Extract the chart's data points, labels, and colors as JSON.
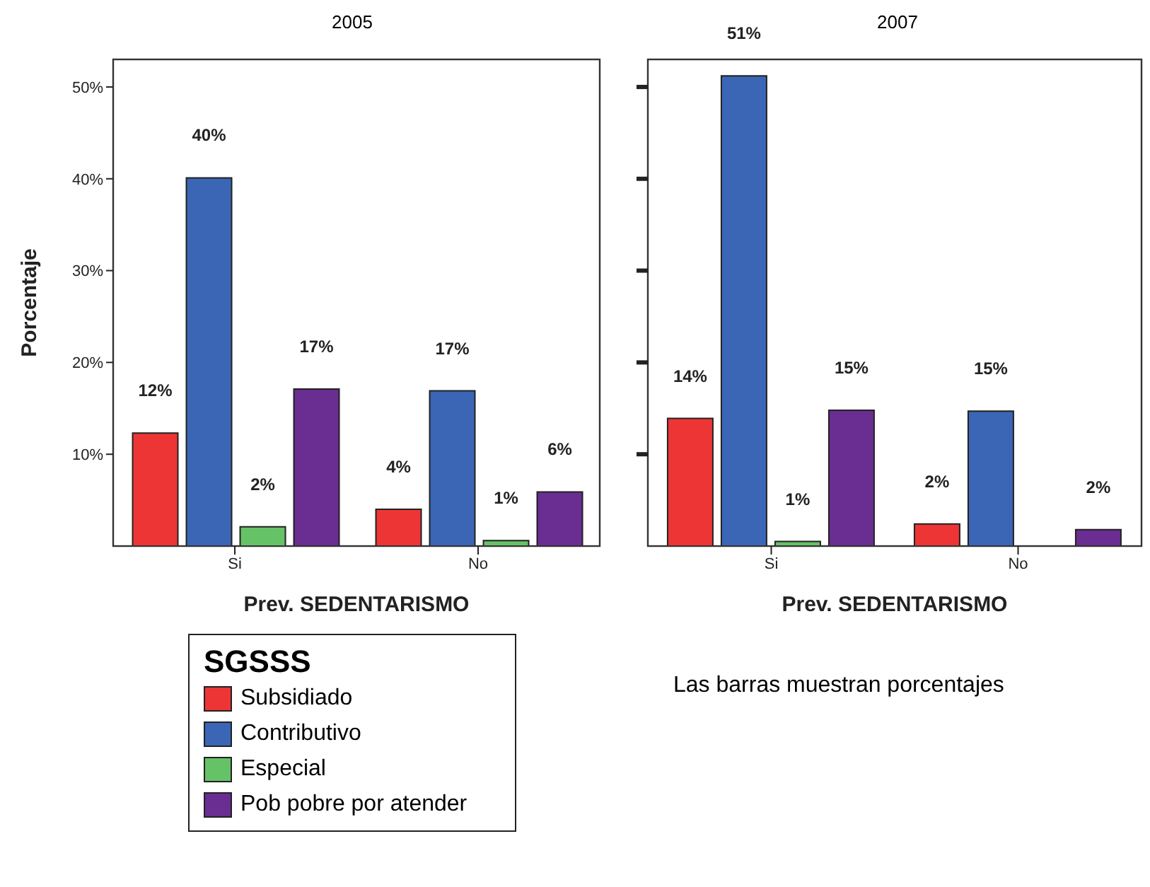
{
  "chart_data": [
    {
      "type": "bar",
      "title": "2005",
      "xlabel": "Prev. SEDENTARISMO",
      "ylabel": "Porcentaje",
      "legend_title": "SGSSS",
      "legend": "bottom",
      "categories": [
        "Si",
        "No"
      ],
      "ylim": [
        0,
        53
      ],
      "yticks": [
        {
          "value": 10,
          "label": "10%"
        },
        {
          "value": 20,
          "label": "20%"
        },
        {
          "value": 30,
          "label": "30%"
        },
        {
          "value": 40,
          "label": "40%"
        },
        {
          "value": 50,
          "label": "50%"
        }
      ],
      "series": [
        {
          "name": "Subsidiado",
          "color": "#ee3535",
          "values": [
            12.3,
            4.0
          ],
          "value_labels": [
            "12%",
            "4%"
          ]
        },
        {
          "name": "Contributivo",
          "color": "#3a66b5",
          "values": [
            40.1,
            16.9
          ],
          "value_labels": [
            "40%",
            "17%"
          ]
        },
        {
          "name": "Especial",
          "color": "#66c266",
          "values": [
            2.1,
            0.6
          ],
          "value_labels": [
            "2%",
            "1%"
          ]
        },
        {
          "name": "Pob pobre por atender",
          "color": "#6a2d91",
          "values": [
            17.1,
            5.9
          ],
          "value_labels": [
            "17%",
            "6%"
          ]
        }
      ]
    },
    {
      "type": "bar",
      "title": "2007",
      "xlabel": "Prev. SEDENTARISMO",
      "categories": [
        "Si",
        "No"
      ],
      "ylim": [
        0,
        53
      ],
      "yticks": [
        {
          "value": 10,
          "label": null
        },
        {
          "value": 20,
          "label": null
        },
        {
          "value": 30,
          "label": null
        },
        {
          "value": 40,
          "label": null
        },
        {
          "value": 50,
          "label": null
        }
      ],
      "tick_labels": "x",
      "annotations": [
        "Las barras muestran porcentajes"
      ],
      "series": [
        {
          "color": "#ee3535",
          "values": [
            13.9,
            2.4
          ],
          "value_labels": [
            "14%",
            "2%"
          ]
        },
        {
          "color": "#3a66b5",
          "values": [
            51.2,
            14.7
          ],
          "value_labels": [
            "51%",
            "15%"
          ]
        },
        {
          "color": "#66c266",
          "values": [
            0.5,
            null
          ],
          "value_labels": [
            "1%",
            null
          ]
        },
        {
          "color": "#6a2d91",
          "values": [
            14.8,
            1.8
          ],
          "value_labels": [
            "15%",
            "2%"
          ]
        }
      ]
    }
  ]
}
